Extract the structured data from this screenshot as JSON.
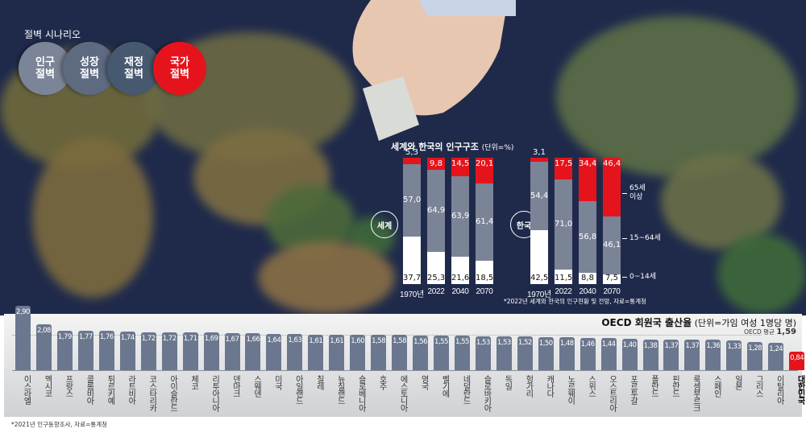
{
  "scenario": {
    "title": "절벽 시나리오",
    "items": [
      {
        "label": "인구\n절벽",
        "color": "#7b8597"
      },
      {
        "label": "성장\n절벽",
        "color": "#5d6a80"
      },
      {
        "label": "재정\n절벽",
        "color": "#46596f"
      },
      {
        "label": "국가\n절벽",
        "color": "#e5141c"
      }
    ]
  },
  "colors": {
    "senior": "#e5141c",
    "working": "#7b8397",
    "youth": "#ffffff",
    "oecd_bar": "#6b778e",
    "korea_bar": "#e5141c"
  },
  "chart_data": [
    {
      "type": "bar",
      "stacked": true,
      "title": "세계와 한국의 인구구조",
      "unit": "(단위=%)",
      "footnote": "*2022년 세계와 한국의 인구현황 및 전망, 자료=통계청",
      "categories": [
        "1970년",
        "2022",
        "2040",
        "2070"
      ],
      "legend": [
        "65세 이상",
        "15~64세",
        "0~14세"
      ],
      "groups": [
        {
          "label": "세계",
          "series": [
            {
              "name": "0~14세",
              "values": [
                "37,7",
                "25,3",
                "21,6",
                "18,5"
              ]
            },
            {
              "name": "15~64세",
              "values": [
                "57,0",
                "64,9",
                "63,9",
                "61,4"
              ]
            },
            {
              "name": "65세 이상",
              "values": [
                "5,3",
                "9,8",
                "14,5",
                "20,1"
              ]
            }
          ]
        },
        {
          "label": "한국",
          "series": [
            {
              "name": "0~14세",
              "values": [
                "42,5",
                "11,5",
                "8,8",
                "7,5"
              ]
            },
            {
              "name": "15~64세",
              "values": [
                "54,4",
                "71,0",
                "56,8",
                "46,1"
              ]
            },
            {
              "name": "65세 이상",
              "values": [
                "3,1",
                "17,5",
                "34,4",
                "46,4"
              ]
            }
          ]
        }
      ]
    },
    {
      "type": "bar",
      "title": "OECD 회원국 출산율",
      "unit": "(단위=가임 여성 1명당 명)",
      "average_label": "OECD 평균",
      "average": "1,59",
      "footnote": "*2021년 인구동향조사, 자료=통계청",
      "categories": [
        "이스라엘",
        "멕시코",
        "프랑스",
        "콜롬비아",
        "튀르키예",
        "라트비아",
        "코스타리카",
        "아이슬란드",
        "체코",
        "리투아니아",
        "덴마크",
        "스웨덴",
        "미국",
        "아일랜드",
        "칠레",
        "뉴질랜드",
        "슬로베니아",
        "호주",
        "에스토니아",
        "영국",
        "벨기에",
        "네덜란드",
        "슬로바키아",
        "독일",
        "헝가리",
        "캐나다",
        "노르웨이",
        "스위스",
        "오스트리아",
        "포르투갈",
        "폴란드",
        "핀란드",
        "룩셈부르크",
        "스페인",
        "일본",
        "그리스",
        "이탈리아",
        "대한민국"
      ],
      "values": [
        "2,90",
        "2,08",
        "1,79",
        "1,77",
        "1,76",
        "1,74",
        "1,72",
        "1,72",
        "1,71",
        "1,69",
        "1,67",
        "1,66",
        "1,64",
        "1,63",
        "1,61",
        "1,61",
        "1,60",
        "1,58",
        "1,58",
        "1,56",
        "1,55",
        "1,55",
        "1,53",
        "1,53",
        "1,52",
        "1,50",
        "1,48",
        "1,46",
        "1,44",
        "1,40",
        "1,38",
        "1,37",
        "1,37",
        "1,36",
        "1,33",
        "1,28",
        "1,24",
        "0,84"
      ],
      "highlight": "대한민국"
    }
  ]
}
